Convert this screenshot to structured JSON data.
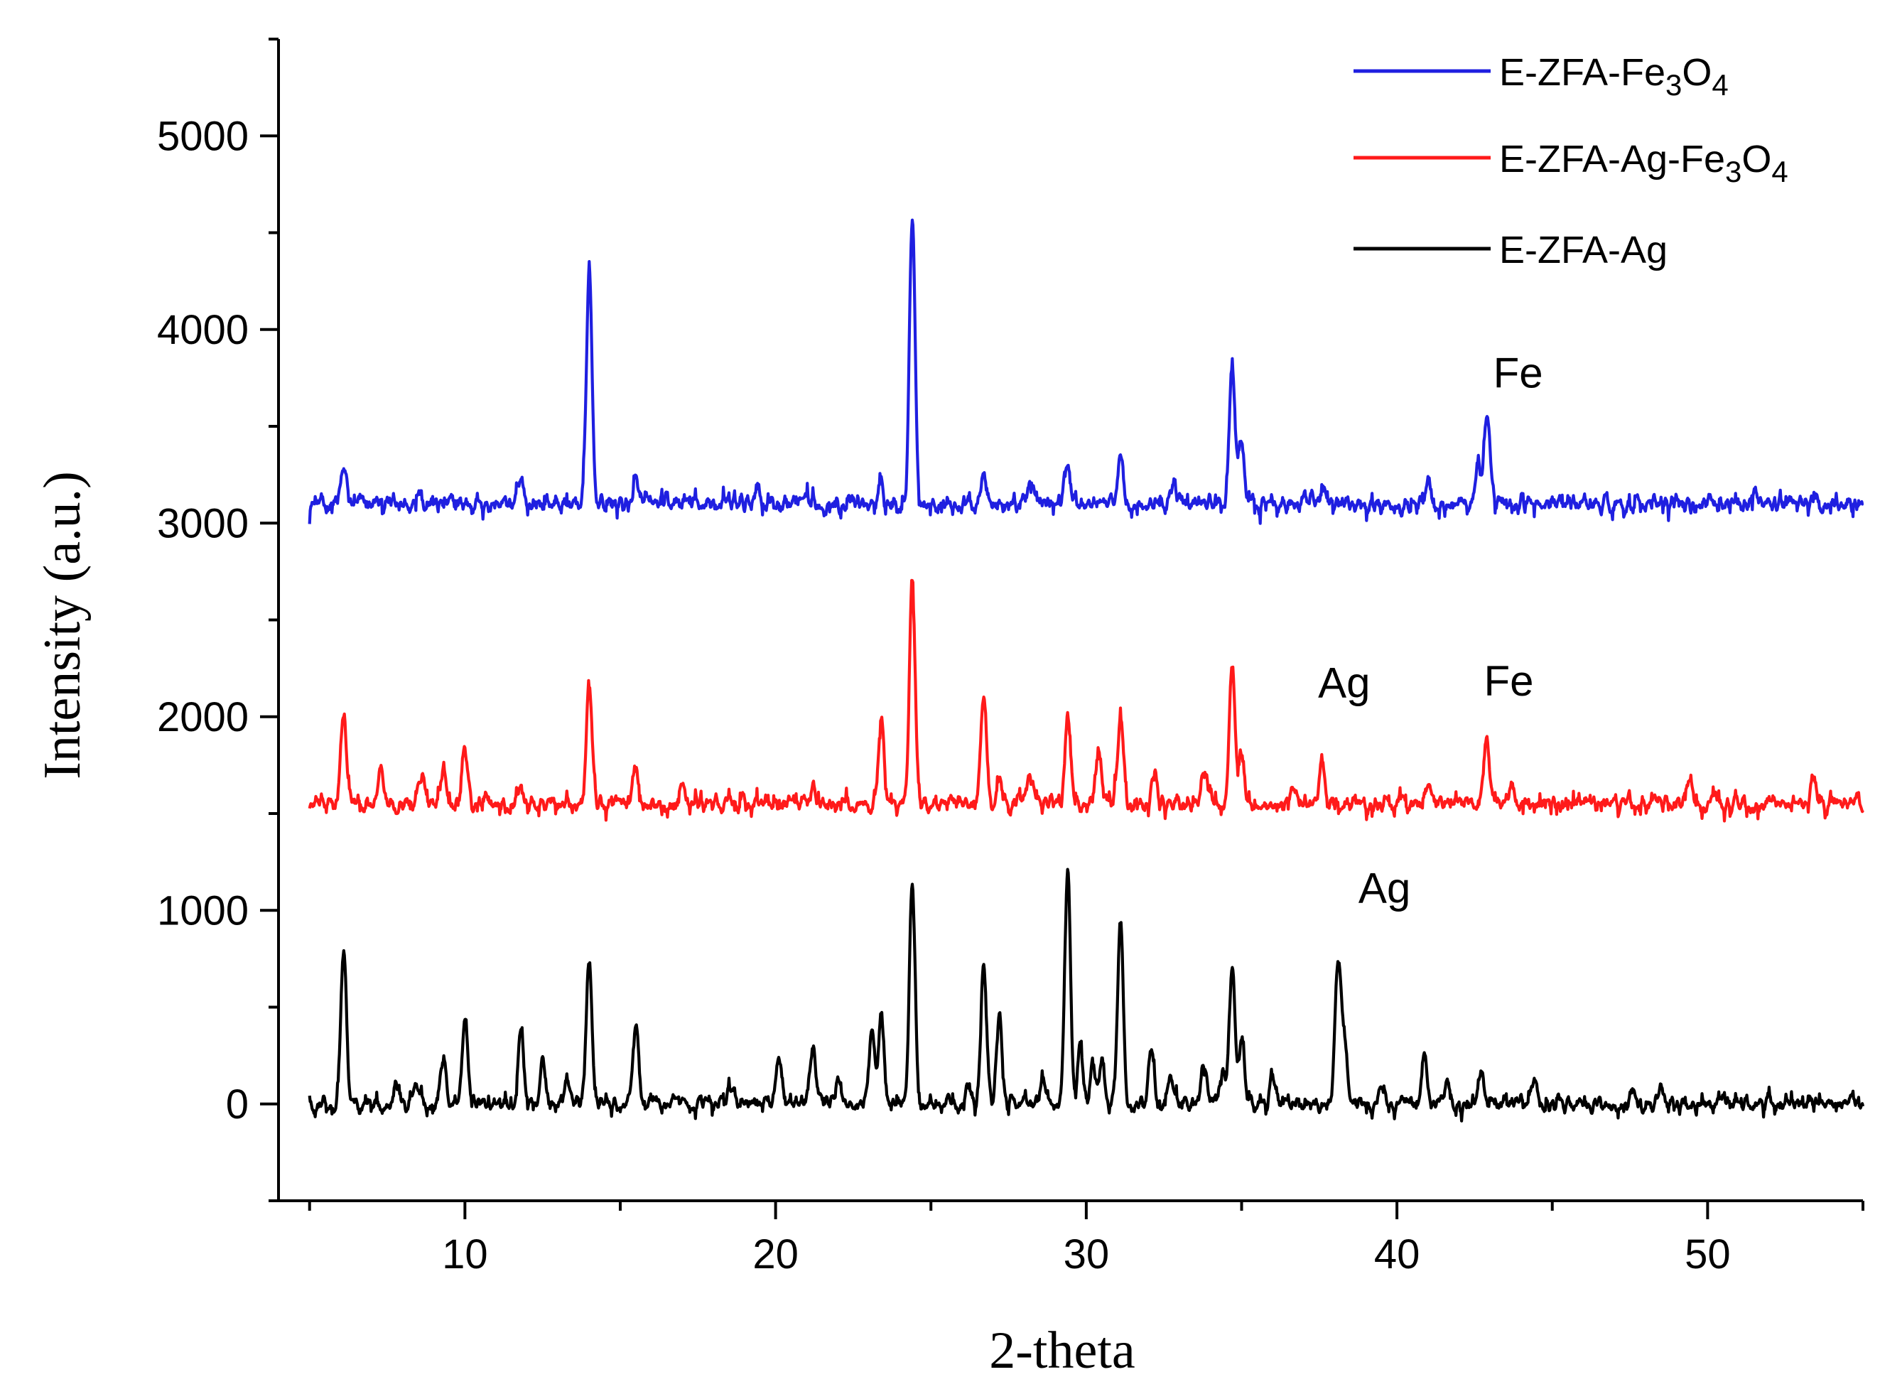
{
  "chart_data": {
    "type": "line",
    "title": "",
    "xlabel": "2-theta",
    "ylabel": "Intensity (a.u.)",
    "xlim": [
      4,
      55
    ],
    "ylim": [
      -500,
      5500
    ],
    "x_ticks": [
      10,
      20,
      30,
      40,
      50
    ],
    "y_ticks": [
      0,
      1000,
      2000,
      3000,
      4000,
      5000
    ],
    "legend_position": "top-right",
    "grid": false,
    "series": [
      {
        "name": "E-ZFA-Fe3O4",
        "legend_label": {
          "base": "E-ZFA-Fe",
          "sub1": "3",
          "mid": "O",
          "sub2": "4"
        },
        "color": "#1f1fe0",
        "baseline": 3100,
        "noise": 55,
        "peaks": [
          [
            6.1,
            180
          ],
          [
            8.5,
            90
          ],
          [
            11.8,
            100
          ],
          [
            14.0,
            1180
          ],
          [
            15.5,
            100
          ],
          [
            19.4,
            100
          ],
          [
            23.4,
            80
          ],
          [
            24.4,
            1500
          ],
          [
            26.7,
            200
          ],
          [
            28.2,
            130
          ],
          [
            29.4,
            220
          ],
          [
            31.1,
            250
          ],
          [
            32.8,
            120
          ],
          [
            34.7,
            720
          ],
          [
            35.0,
            300
          ],
          [
            37.6,
            80
          ],
          [
            41.0,
            130
          ],
          [
            42.6,
            200
          ],
          [
            42.9,
            430
          ],
          [
            51.5,
            70
          ]
        ]
      },
      {
        "name": "E-ZFA-Ag-Fe3O4",
        "legend_label": {
          "base": "E-ZFA-Ag-Fe",
          "sub1": "3",
          "mid": "O",
          "sub2": "4"
        },
        "color": "#ff1a1a",
        "baseline": 1550,
        "noise": 50,
        "peaks": [
          [
            6.1,
            470
          ],
          [
            7.3,
            150
          ],
          [
            8.6,
            160
          ],
          [
            9.3,
            160
          ],
          [
            10.0,
            300
          ],
          [
            11.8,
            130
          ],
          [
            14.0,
            640
          ],
          [
            15.5,
            200
          ],
          [
            17.0,
            100
          ],
          [
            21.2,
            80
          ],
          [
            23.4,
            430
          ],
          [
            24.4,
            1140
          ],
          [
            26.7,
            580
          ],
          [
            27.2,
            100
          ],
          [
            28.2,
            140
          ],
          [
            29.4,
            450
          ],
          [
            30.4,
            250
          ],
          [
            31.1,
            450
          ],
          [
            32.2,
            150
          ],
          [
            33.8,
            150
          ],
          [
            34.7,
            710
          ],
          [
            35.0,
            250
          ],
          [
            36.7,
            80
          ],
          [
            37.6,
            200
          ],
          [
            41.0,
            100
          ],
          [
            42.9,
            340
          ],
          [
            43.7,
            80
          ],
          [
            49.4,
            120
          ],
          [
            53.4,
            120
          ]
        ]
      },
      {
        "name": "E-ZFA-Ag",
        "legend_label": {
          "base": "E-ZFA-Ag",
          "sub1": "",
          "mid": "",
          "sub2": ""
        },
        "color": "#000000",
        "baseline": 0,
        "noise": 45,
        "peaks": [
          [
            6.1,
            800
          ],
          [
            7.8,
            110
          ],
          [
            8.4,
            110
          ],
          [
            9.3,
            220
          ],
          [
            10.0,
            400
          ],
          [
            11.8,
            380
          ],
          [
            12.5,
            220
          ],
          [
            13.3,
            110
          ],
          [
            14.0,
            770
          ],
          [
            15.5,
            440
          ],
          [
            18.6,
            80
          ],
          [
            20.1,
            230
          ],
          [
            21.2,
            330
          ],
          [
            22.0,
            140
          ],
          [
            23.1,
            360
          ],
          [
            23.4,
            470
          ],
          [
            24.4,
            1140
          ],
          [
            26.2,
            110
          ],
          [
            26.7,
            730
          ],
          [
            27.2,
            470
          ],
          [
            28.6,
            110
          ],
          [
            29.4,
            1210
          ],
          [
            29.8,
            300
          ],
          [
            30.2,
            200
          ],
          [
            30.5,
            220
          ],
          [
            31.1,
            970
          ],
          [
            32.1,
            250
          ],
          [
            32.7,
            150
          ],
          [
            33.8,
            220
          ],
          [
            34.4,
            170
          ],
          [
            34.7,
            700
          ],
          [
            35.0,
            300
          ],
          [
            36.0,
            140
          ],
          [
            38.1,
            740
          ],
          [
            38.3,
            300
          ],
          [
            39.5,
            130
          ],
          [
            40.9,
            240
          ],
          [
            41.6,
            100
          ],
          [
            42.7,
            170
          ],
          [
            44.4,
            100
          ],
          [
            47.6,
            80
          ],
          [
            48.5,
            70
          ]
        ]
      }
    ],
    "annotations": [
      {
        "text": "Fe",
        "x": 43.9,
        "y": 3700
      },
      {
        "text": "Ag",
        "x": 38.3,
        "y": 2100
      },
      {
        "text": "Fe",
        "x": 43.6,
        "y": 2110
      },
      {
        "text": "Ag",
        "x": 39.6,
        "y": 1040
      }
    ]
  }
}
